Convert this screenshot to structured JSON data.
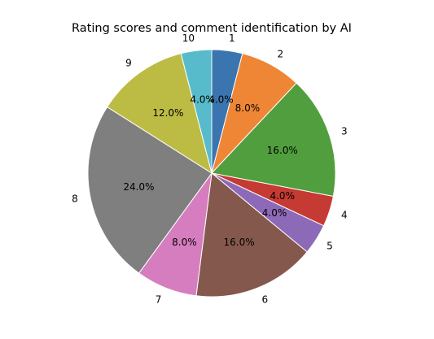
{
  "chart_data": {
    "type": "pie",
    "title": "Rating scores and comment identification by AI",
    "start_angle_deg": 90,
    "direction": "clockwise",
    "slices": [
      {
        "label": "1",
        "value": 4.0,
        "pct_label": "4.0%",
        "color": "#3b75af"
      },
      {
        "label": "2",
        "value": 8.0,
        "pct_label": "8.0%",
        "color": "#ef8636"
      },
      {
        "label": "3",
        "value": 16.0,
        "pct_label": "16.0%",
        "color": "#519e3e"
      },
      {
        "label": "4",
        "value": 4.0,
        "pct_label": "4.0%",
        "color": "#c53a32"
      },
      {
        "label": "5",
        "value": 4.0,
        "pct_label": "4.0%",
        "color": "#8d6ab8"
      },
      {
        "label": "6",
        "value": 16.0,
        "pct_label": "16.0%",
        "color": "#85584e"
      },
      {
        "label": "7",
        "value": 8.0,
        "pct_label": "8.0%",
        "color": "#d57dbe"
      },
      {
        "label": "8",
        "value": 24.0,
        "pct_label": "24.0%",
        "color": "#7f7f7f"
      },
      {
        "label": "9",
        "value": 12.0,
        "pct_label": "12.0%",
        "color": "#bcbc45"
      },
      {
        "label": "10",
        "value": 4.0,
        "pct_label": "4.0%",
        "color": "#58bbcc"
      }
    ]
  }
}
